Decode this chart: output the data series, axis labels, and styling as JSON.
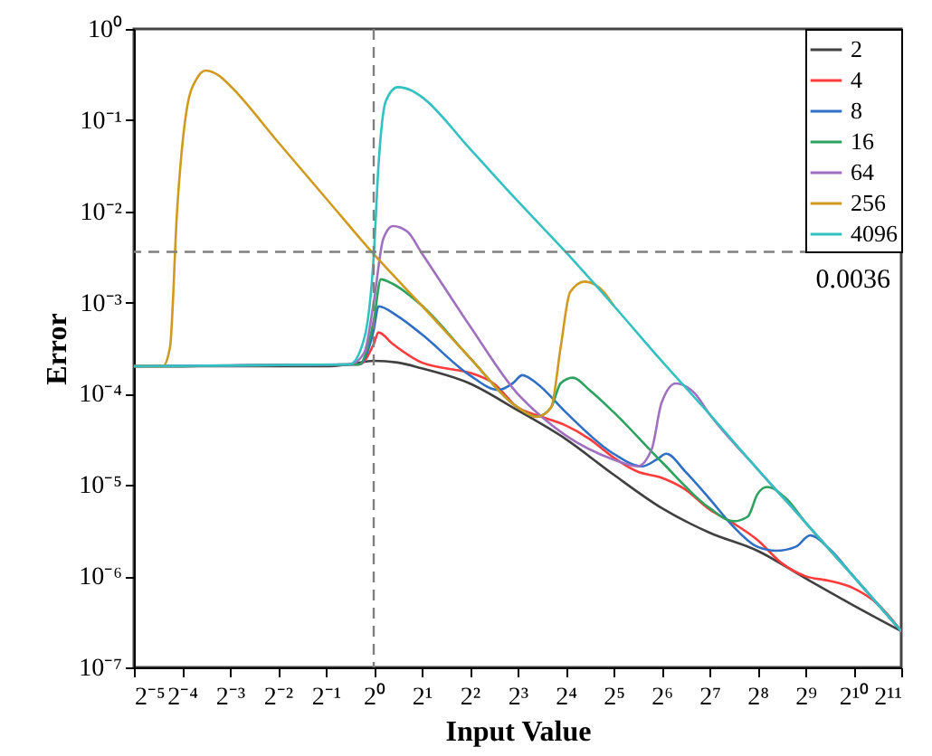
{
  "chart_data": {
    "type": "line",
    "xlabel": "Input Value",
    "ylabel": "Error",
    "log": "xy",
    "legend": "top right",
    "xlim": [
      0.03125,
      2048
    ],
    "ylim": [
      1e-07,
      1
    ],
    "xticks": [
      {
        "value": 0.03125,
        "label": "2⁻⁵"
      },
      {
        "value": 0.0625,
        "label": "2⁻⁴"
      },
      {
        "value": 0.125,
        "label": "2⁻³"
      },
      {
        "value": 0.25,
        "label": "2⁻²"
      },
      {
        "value": 0.5,
        "label": "2⁻¹"
      },
      {
        "value": 1,
        "label": "2⁰"
      },
      {
        "value": 2,
        "label": "2¹"
      },
      {
        "value": 4,
        "label": "2²"
      },
      {
        "value": 8,
        "label": "2³"
      },
      {
        "value": 16,
        "label": "2⁴"
      },
      {
        "value": 32,
        "label": "2⁵"
      },
      {
        "value": 64,
        "label": "2⁶"
      },
      {
        "value": 128,
        "label": "2⁷"
      },
      {
        "value": 256,
        "label": "2⁸"
      },
      {
        "value": 512,
        "label": "2⁹"
      },
      {
        "value": 1024,
        "label": "2¹⁰"
      },
      {
        "value": 2048,
        "label": "2¹¹"
      }
    ],
    "yticks": [
      {
        "value": 1e-07,
        "label": "10⁻⁷"
      },
      {
        "value": 1e-06,
        "label": "10⁻⁶"
      },
      {
        "value": 1e-05,
        "label": "10⁻⁵"
      },
      {
        "value": 0.0001,
        "label": "10⁻⁴"
      },
      {
        "value": 0.001,
        "label": "10⁻³"
      },
      {
        "value": 0.01,
        "label": "10⁻²"
      },
      {
        "value": 0.1,
        "label": "10⁻¹"
      },
      {
        "value": 1,
        "label": "10⁰"
      }
    ],
    "ref_lines": [
      {
        "axis": "x",
        "value": 1,
        "color": "#808080",
        "line_style": "dashed"
      },
      {
        "axis": "y",
        "value": 0.0036,
        "label": "0.0036",
        "color": "#808080",
        "line_style": "dashed"
      }
    ],
    "series": [
      {
        "name": "2",
        "color": "#404040",
        "x": [
          0.03125,
          0.5,
          0.707,
          1,
          1.414,
          2,
          4,
          8,
          16,
          32,
          64,
          128,
          256,
          512,
          1024,
          2048
        ],
        "values": [
          0.0002,
          0.0002,
          0.00021,
          0.00023,
          0.00022,
          0.00019,
          0.00013,
          6.6e-05,
          3.2e-05,
          1.3e-05,
          5.6e-06,
          3e-06,
          1.9e-06,
          9.5e-07,
          4.8e-07,
          2.5e-07
        ]
      },
      {
        "name": "4",
        "color": "#ff3b3b",
        "x": [
          0.03125,
          0.812,
          1,
          1.072,
          1.32,
          2,
          2.83,
          4,
          5.66,
          8,
          11.31,
          16,
          22.6,
          32,
          45.3,
          64,
          90.5,
          128,
          181,
          256,
          362,
          512,
          724,
          1024,
          1448,
          2048
        ],
        "values": [
          0.0002,
          0.00021,
          0.00035,
          0.00047,
          0.00035,
          0.00022,
          0.00019,
          0.00017,
          0.00013,
          7.1e-05,
          5.6e-05,
          4.5e-05,
          3.2e-05,
          2e-05,
          1.4e-05,
          1.2e-05,
          8.9e-06,
          5.4e-06,
          3.8e-06,
          2.5e-06,
          1.4e-06,
          1e-06,
          8.9e-07,
          7.4e-07,
          5e-07,
          2.5e-07
        ]
      },
      {
        "name": "8",
        "color": "#2f6fc4",
        "x": [
          0.03125,
          0.812,
          1,
          1.072,
          1.414,
          2,
          4,
          6.06,
          7.46,
          8.57,
          10.56,
          16,
          32,
          48.5,
          59.7,
          68.6,
          90.5,
          128,
          181,
          256,
          338,
          446,
          549,
          724,
          1024,
          2048
        ],
        "values": [
          0.0002,
          0.00021,
          0.0005,
          0.00091,
          0.00071,
          0.00045,
          0.00016,
          0.00011,
          0.00013,
          0.00016,
          0.00013,
          6.3e-05,
          2.2e-05,
          1.6e-05,
          1.9e-05,
          2.2e-05,
          1.4e-05,
          7.1e-06,
          3.5e-06,
          2.1e-06,
          1.9e-06,
          2.1e-06,
          2.8e-06,
          2e-06,
          1e-06,
          2.5e-07
        ]
      },
      {
        "name": "16",
        "color": "#2ca25f",
        "x": [
          0.03125,
          0.812,
          1,
          1.11,
          1.32,
          2,
          4,
          8,
          10.56,
          13,
          14.9,
          17.8,
          22.6,
          32,
          64,
          128,
          181,
          223,
          256,
          294,
          388,
          512,
          1024,
          2048
        ],
        "values": [
          0.0002,
          0.00021,
          0.00063,
          0.0018,
          0.0016,
          0.00093,
          0.00025,
          7.1e-05,
          5.6e-05,
          7.1e-05,
          0.00013,
          0.00015,
          0.00011,
          6.3e-05,
          1.8e-05,
          5.6e-06,
          4e-06,
          4.5e-06,
          7.9e-06,
          9.5e-06,
          7.1e-06,
          3.9e-06,
          1e-06,
          2.5e-07
        ]
      },
      {
        "name": "64",
        "color": "#a070c0",
        "x": [
          0.03125,
          0.707,
          0.871,
          1,
          1.149,
          1.32,
          1.625,
          2,
          4,
          8,
          11.31,
          16,
          32,
          45.3,
          55.7,
          64,
          78.8,
          104,
          128,
          256,
          512,
          1024,
          2048
        ],
        "values": [
          0.0002,
          0.00021,
          0.00028,
          0.001,
          0.005,
          0.0069,
          0.006,
          0.0035,
          0.00056,
          0.0001,
          5.6e-05,
          3.5e-05,
          1.9e-05,
          1.6e-05,
          2.5e-05,
          7.9e-05,
          0.00013,
          0.0001,
          6e-05,
          1.5e-05,
          3.9e-06,
          1e-06,
          2.5e-07
        ]
      },
      {
        "name": "256",
        "color": "#d09a20",
        "x": [
          0.03125,
          0.0474,
          0.0526,
          0.0583,
          0.067,
          0.077,
          0.0884,
          0.109,
          0.125,
          0.25,
          0.5,
          1,
          2,
          4,
          8,
          10.56,
          13,
          14.9,
          17.1,
          21.1,
          27.9,
          32
        ],
        "values": [
          0.0002,
          0.0002,
          0.00032,
          0.01,
          0.13,
          0.28,
          0.35,
          0.3,
          0.24,
          0.058,
          0.014,
          0.0034,
          0.00093,
          0.00025,
          7.1e-05,
          5.6e-05,
          7.1e-05,
          0.00032,
          0.0013,
          0.0017,
          0.0013,
          0.00093
        ]
      },
      {
        "name": "4096",
        "color": "#33c0c0",
        "x": [
          0.03125,
          0.707,
          0.871,
          1,
          1.072,
          1.189,
          1.414,
          1.741,
          2,
          4,
          8,
          16,
          32,
          64,
          128,
          256,
          512,
          1024,
          2048
        ],
        "values": [
          0.0002,
          0.00021,
          0.0004,
          0.0032,
          0.032,
          0.16,
          0.23,
          0.21,
          0.18,
          0.049,
          0.013,
          0.0036,
          0.00093,
          0.00023,
          6e-05,
          1.5e-05,
          3.9e-06,
          1e-06,
          2.5e-07
        ]
      }
    ]
  }
}
